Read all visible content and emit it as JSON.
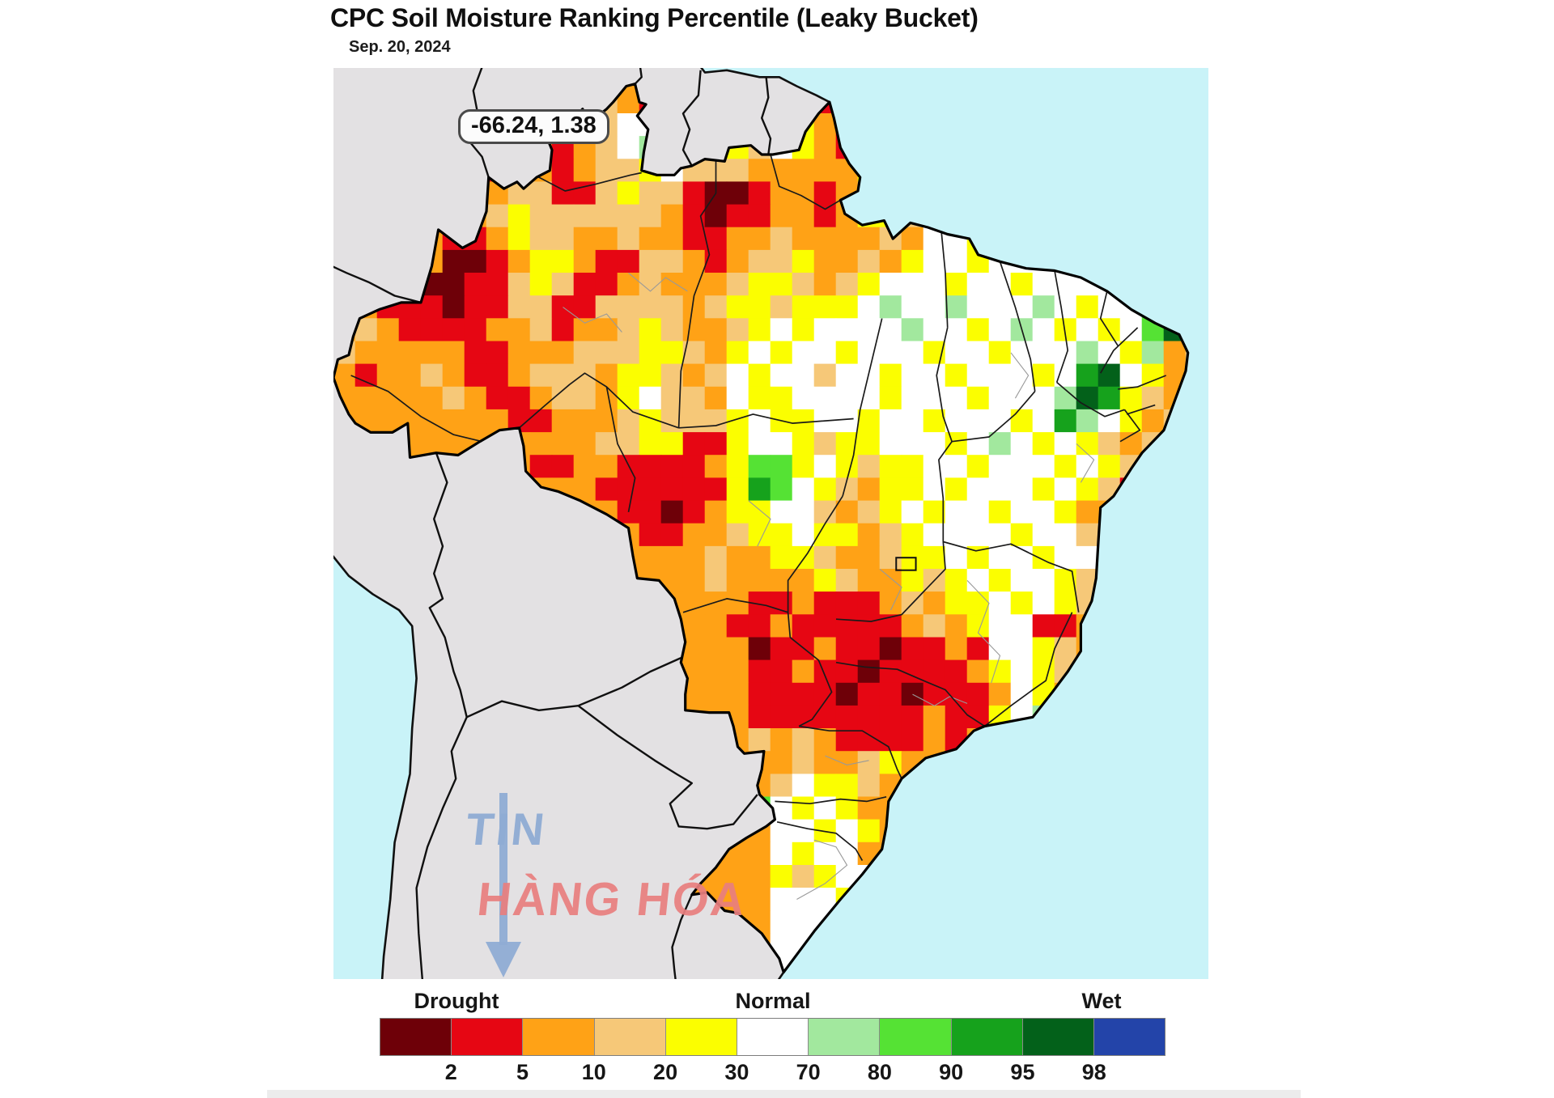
{
  "title": "CPC Soil Moisture Ranking Percentile (Leaky Bucket)",
  "date": "Sep. 20, 2024",
  "tooltip": {
    "text": "-66.24, 1.38"
  },
  "watermark": {
    "line1": "TIN",
    "line2": "HÀNG HÓA"
  },
  "legend": {
    "category_labels": [
      "Drought",
      "Normal",
      "Wet"
    ],
    "ticks": [
      "2",
      "5",
      "10",
      "20",
      "30",
      "70",
      "80",
      "90",
      "95",
      "98"
    ],
    "colors": [
      "#6E0008",
      "#E60613",
      "#FFA216",
      "#F6C878",
      "#FBFE00",
      "#FFFFFF",
      "#A2E89E",
      "#55E234",
      "#16A21C",
      "#03611A",
      "#2344A9"
    ]
  },
  "map": {
    "ocean_color": "#C9F3F8",
    "land_color": "#E3E1E3",
    "coast_color": "#101010",
    "state_line_color": "#1a1a1a",
    "muni_line_color": "#999999",
    "palette": {
      "m": "#6E0008",
      "r": "#E60613",
      "o": "#FFA216",
      "t": "#F6C878",
      "y": "#FBFE00",
      "w": "#FFFFFF",
      "g": "#A2E89E",
      "G": "#55E234",
      "d": "#16A21C",
      "D": "#03611A",
      "b": "#2344A9"
    },
    "cells": [
      "oooooooooooooorrroooyyyyyyyyyywwwwwwwwwww",
      "ooooooooooootorrrotwyyrwyywwwwwwwwwwwwwww",
      "ooooooooooootwwwotytwyorwyyyyywwwwwwwwwww",
      "oooooooooorotwgwtyytwyoryyyyyywwwwwwwwwww",
      "ooooorrroorottywtttoooooyywwwwwwwwwwwwwww",
      "oooorroottrrtyttrmmroorotyywwwwwwwwwwwwww",
      "oooorrotyttttttormrrooroyytwywwwwwwwwwwww",
      "ooooorroyttootoorrootooootowwywwwwwwwwwww",
      "ttooommroyyorrttorottyootoywwywwwwwwwwwww",
      "oorrmmrrtytrrotoootyytotywwwywwywwwwwwwww",
      "oorrrmrrttrrttttotyytyyywgwwgwwwgwywwGddd",
      "otorrrrootrootytootywywwwwgwwywgwywywGDdd",
      "tooooorroootttyytoywywwywwwywwywwwgwygott",
      "orootorrotttoyytotwywwtwwywwywwwywdDwyomo",
      "oooootorrottoywttowyywwwwywwwywwwgDdytooo",
      "oooooooorroootytttywyywwywwywwwywdgwyottt",
      "oooooooooooottyyrrywwytyywwwywgwywytotttt",
      "ooooooooorroorrrroyGGywytyywwywwwywytwttt",
      "oooooooooooorrrrrrydGwytoyywywwwywytrtttt",
      "oooooootooooorrmroyywwtotywywwywwyoortttt",
      "ooooooooototoorrootyywyyotywwwwywwtwttttt",
      "ooooooooooooooooo",
      "oooooooooooooooootooooytooytywywwytootttt",
      "ooooooooooooooooooorrorrrotoyywywytoottttt",
      "ooooooooooooooooorrorrrrrotoywwrroottttttt",
      "ooooooooooooooooooomrrorrmrrorwwytoottttttt",
      "ooooooooooooooooooorrorrmrrrroywytottttttt",
      "ooooooooooooooooooorrrrmrrmrrrowyotttttttt",
      "ooooooooooooooooooorrrrrrrrorrywgtttttttt",
      "ooooooooooooooooooitorrrrooooywwtttttttt",
      "oooooooooooooooooooootootyooowwwwwwwwwww",
      "ooooooooooooooooooootwyytooooowwwwwwwwwww",
      "oooooooooooooooooooGwywyoooooowwwwwwwwwww",
      "oooooooooooooooooooowwywyooooowwwwwwwwwww",
      "oooooooooooooooooooowywwoooooowwwwwwwwwww",
      "ooooooooooooooooooooytywwooooowwwwwwwwwww",
      "oooooooooooooooooooowwwywooooowwwwwwwwwww",
      "oooooooooooooooooooowwwwwooooowwwwwwwwwww",
      "oooooooooooooooooooowwwwwooooowwwwwwwwwww",
      "oooooooooooooooooooowwwwwooooowwwwwwwwwww"
    ],
    "cells_fix": {
      "21": "oooooooooooooooootooyytootyywywwywwtttttt",
      "22": "oooooooooooooooootooooytooytywywwytootttt",
      "23": "ooooooooooooooooooorrorrrotoyywywytoottttt",
      "24": "oooooooooooooooooorrorrrrrotoywwrroottttttt",
      "29": "ooooooooooooooooooototorrrroroooywwtttttttt"
    }
  }
}
